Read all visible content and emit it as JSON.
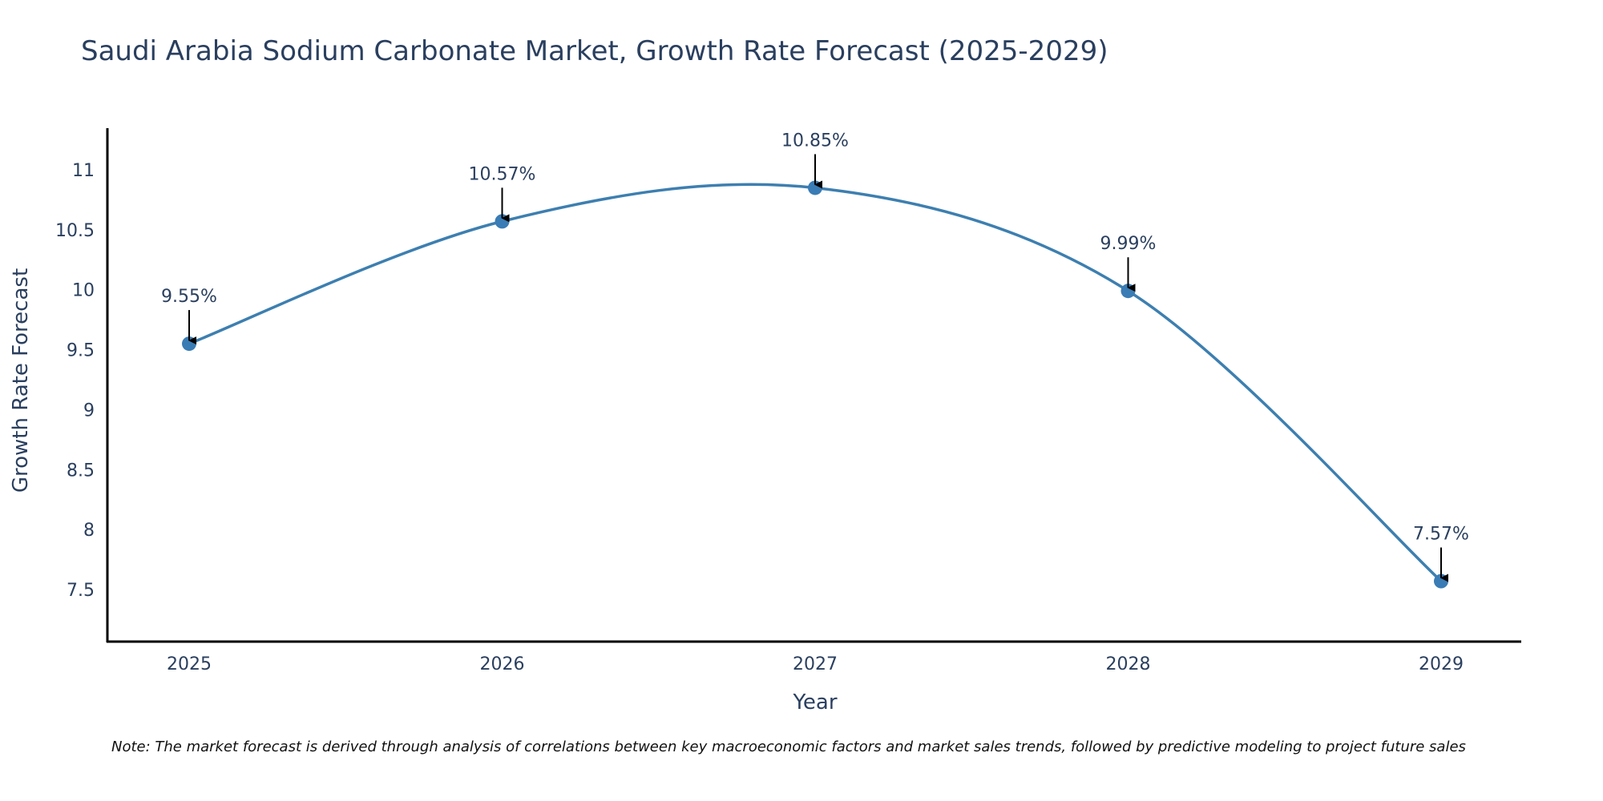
{
  "chart_data": {
    "type": "line",
    "title": "Saudi Arabia Sodium Carbonate Market, Growth Rate Forecast (2025-2029)",
    "xlabel": "Year",
    "ylabel": "Growth Rate Forecast",
    "x": [
      "2025",
      "2026",
      "2027",
      "2028",
      "2029"
    ],
    "values": [
      9.55,
      10.57,
      10.85,
      9.99,
      7.57
    ],
    "annotations": [
      "9.55%",
      "10.57%",
      "10.85%",
      "9.99%",
      "7.57%"
    ],
    "yticks": [
      "7.5",
      "8",
      "8.5",
      "9",
      "9.5",
      "10",
      "10.5",
      "11"
    ],
    "ytick_values": [
      7.5,
      8,
      8.5,
      9,
      9.5,
      10,
      10.5,
      11
    ],
    "ylim": [
      7.04,
      11.39
    ],
    "grid": false,
    "line_color": "#3d7fb0",
    "marker_color": "#3a7cb5",
    "note": "Note: The market forecast is derived through analysis of correlations between key macroeconomic factors and market sales trends, followed by predictive modeling to project future sales"
  }
}
